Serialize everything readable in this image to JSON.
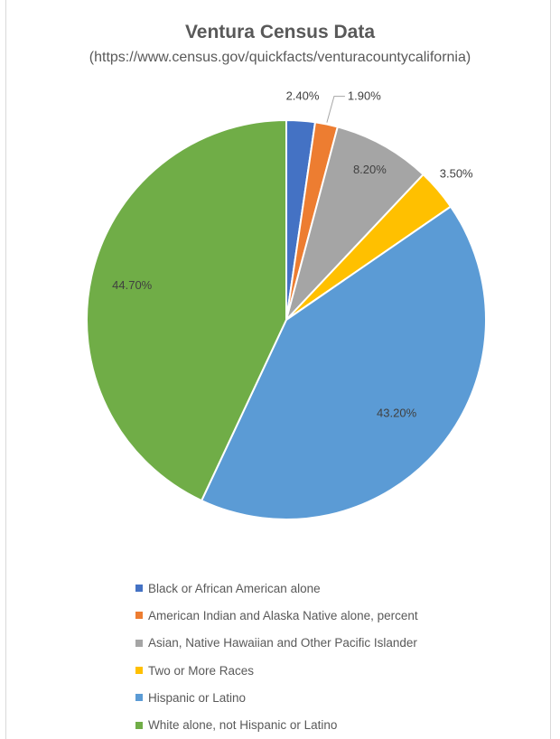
{
  "chart_data": {
    "type": "pie",
    "title": "Ventura Census Data",
    "subtitle": "(https://www.census.gov/quickfacts/venturacountycalifornia)",
    "categories": [
      "Black or African American alone",
      "American Indian and Alaska Native alone, percent",
      "Asian, Native Hawaiian and Other Pacific Islander",
      "Two or More Races",
      "Hispanic or Latino",
      "White alone, not Hispanic or Latino"
    ],
    "values": [
      2.4,
      1.9,
      8.2,
      3.5,
      43.2,
      44.7
    ],
    "value_labels": [
      "2.40%",
      "1.90%",
      "8.20%",
      "3.50%",
      "43.20%",
      "44.70%"
    ],
    "colors": [
      "#4472C4",
      "#ED7D31",
      "#A5A5A5",
      "#FFC000",
      "#5B9BD5",
      "#70AD47"
    ],
    "legend_position": "bottom"
  }
}
